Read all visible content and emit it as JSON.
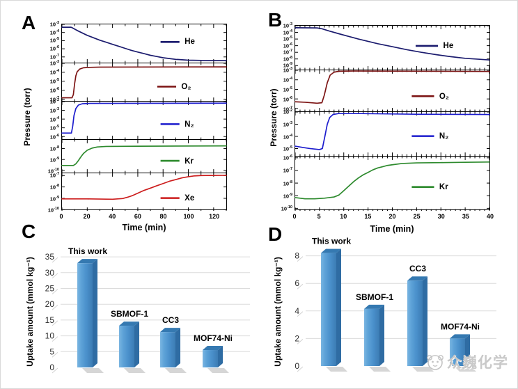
{
  "watermark": {
    "text": "众巍化学",
    "logo_icon": "cartoon-animal-face-icon"
  },
  "chart_data": [
    {
      "panel": "A",
      "type": "line",
      "xlabel": "Time (min)",
      "ylabel": "Pressure (torr)",
      "x_range": [
        0,
        130
      ],
      "x_ticks": [
        0,
        20,
        40,
        60,
        80,
        100,
        120
      ],
      "y_scale": "log10 (torr)",
      "subplots": [
        {
          "label": "He",
          "color": "#1b1b6e",
          "y_log_range": [
            -3,
            -7.7
          ],
          "y_tick_exponents": [
            -3,
            -4,
            -5,
            -6,
            -7
          ],
          "points": [
            [
              0,
              -3.35
            ],
            [
              7,
              -3.35
            ],
            [
              8,
              -3.4
            ],
            [
              12,
              -3.75
            ],
            [
              16,
              -4.05
            ],
            [
              20,
              -4.35
            ],
            [
              25,
              -4.65
            ],
            [
              30,
              -4.95
            ],
            [
              35,
              -5.2
            ],
            [
              40,
              -5.45
            ],
            [
              45,
              -5.7
            ],
            [
              50,
              -5.95
            ],
            [
              55,
              -6.2
            ],
            [
              60,
              -6.4
            ],
            [
              65,
              -6.6
            ],
            [
              70,
              -6.8
            ],
            [
              75,
              -6.95
            ],
            [
              80,
              -7.1
            ],
            [
              85,
              -7.2
            ],
            [
              90,
              -7.3
            ],
            [
              95,
              -7.35
            ],
            [
              100,
              -7.4
            ],
            [
              110,
              -7.43
            ],
            [
              120,
              -7.45
            ],
            [
              130,
              -7.45
            ]
          ]
        },
        {
          "label": "O₂",
          "color": "#7c1313",
          "y_log_range": [
            -3,
            -7.2
          ],
          "y_tick_exponents": [
            -3,
            -4,
            -5,
            -6,
            -7
          ],
          "points": [
            [
              0,
              -6.85
            ],
            [
              8,
              -6.85
            ],
            [
              9,
              -6.5
            ],
            [
              10,
              -5.3
            ],
            [
              11,
              -4.4
            ],
            [
              12,
              -3.95
            ],
            [
              14,
              -3.65
            ],
            [
              17,
              -3.5
            ],
            [
              22,
              -3.45
            ],
            [
              30,
              -3.42
            ],
            [
              130,
              -3.4
            ]
          ]
        },
        {
          "label": "N₂",
          "color": "#1c1ccd",
          "y_log_range": [
            -2,
            -6.3
          ],
          "y_tick_exponents": [
            -2,
            -3,
            -4,
            -5,
            -6
          ],
          "points": [
            [
              0,
              -5.6
            ],
            [
              7.5,
              -5.6
            ],
            [
              8.5,
              -4.8
            ],
            [
              9.5,
              -3.6
            ],
            [
              11,
              -2.8
            ],
            [
              13,
              -2.4
            ],
            [
              16,
              -2.25
            ],
            [
              22,
              -2.2
            ],
            [
              130,
              -2.18
            ]
          ]
        },
        {
          "label": "Kr",
          "color": "#2d8a2d",
          "y_log_range": [
            -7.2,
            -10.2
          ],
          "y_tick_exponents": [
            -8,
            -9,
            -10
          ],
          "points": [
            [
              0,
              -9.55
            ],
            [
              9,
              -9.55
            ],
            [
              11,
              -9.4
            ],
            [
              13,
              -9.1
            ],
            [
              15,
              -8.75
            ],
            [
              17,
              -8.45
            ],
            [
              20,
              -8.15
            ],
            [
              24,
              -7.95
            ],
            [
              28,
              -7.85
            ],
            [
              35,
              -7.8
            ],
            [
              60,
              -7.78
            ],
            [
              130,
              -7.75
            ]
          ]
        },
        {
          "label": "Xe",
          "color": "#cc1c1c",
          "y_log_range": [
            -6.8,
            -10.1
          ],
          "y_tick_exponents": [
            -7,
            -8,
            -9,
            -10
          ],
          "points": [
            [
              0,
              -9.05
            ],
            [
              20,
              -9.05
            ],
            [
              40,
              -9.08
            ],
            [
              48,
              -9.02
            ],
            [
              52,
              -8.9
            ],
            [
              56,
              -8.75
            ],
            [
              60,
              -8.55
            ],
            [
              65,
              -8.3
            ],
            [
              70,
              -8.1
            ],
            [
              75,
              -7.9
            ],
            [
              80,
              -7.7
            ],
            [
              85,
              -7.5
            ],
            [
              90,
              -7.35
            ],
            [
              95,
              -7.2
            ],
            [
              100,
              -7.1
            ],
            [
              105,
              -7.03
            ],
            [
              110,
              -7.0
            ],
            [
              130,
              -6.98
            ]
          ]
        }
      ]
    },
    {
      "panel": "B",
      "type": "line",
      "xlabel": "Time (min)",
      "ylabel": "Pressure (torr)",
      "x_range": [
        0,
        40
      ],
      "x_ticks": [
        0,
        5,
        10,
        15,
        20,
        25,
        30,
        35,
        40
      ],
      "y_scale": "log10 (torr)",
      "subplots": [
        {
          "label": "He",
          "color": "#1b1b6e",
          "y_log_range": [
            -3,
            -9.6
          ],
          "y_tick_exponents": [
            -3,
            -4,
            -5,
            -6,
            -7,
            -8,
            -9
          ],
          "points": [
            [
              0,
              -3.3
            ],
            [
              4.5,
              -3.32
            ],
            [
              5.5,
              -3.45
            ],
            [
              7,
              -3.8
            ],
            [
              9,
              -4.2
            ],
            [
              11,
              -4.6
            ],
            [
              13,
              -5.0
            ],
            [
              15,
              -5.35
            ],
            [
              17,
              -5.7
            ],
            [
              20,
              -6.15
            ],
            [
              23,
              -6.6
            ],
            [
              26,
              -7.0
            ],
            [
              29,
              -7.35
            ],
            [
              32,
              -7.65
            ],
            [
              35,
              -7.9
            ],
            [
              38,
              -8.05
            ],
            [
              40,
              -8.15
            ]
          ]
        },
        {
          "label": "O₂",
          "color": "#7c1313",
          "y_log_range": [
            -3,
            -7.3
          ],
          "y_tick_exponents": [
            -3,
            -4,
            -5,
            -6,
            -7
          ],
          "points": [
            [
              0,
              -6.3
            ],
            [
              2,
              -6.35
            ],
            [
              4.5,
              -6.45
            ],
            [
              5.5,
              -6.4
            ],
            [
              6,
              -5.6
            ],
            [
              6.6,
              -4.3
            ],
            [
              7.2,
              -3.5
            ],
            [
              8,
              -3.2
            ],
            [
              9,
              -3.1
            ],
            [
              12,
              -3.08
            ],
            [
              40,
              -3.12
            ]
          ]
        },
        {
          "label": "N₂",
          "color": "#1c1ccd",
          "y_log_range": [
            -2,
            -5.6
          ],
          "y_tick_exponents": [
            -2,
            -3,
            -4,
            -5
          ],
          "points": [
            [
              0,
              -4.8
            ],
            [
              1.5,
              -4.9
            ],
            [
              3,
              -5.0
            ],
            [
              5,
              -5.08
            ],
            [
              5.6,
              -5.0
            ],
            [
              6.1,
              -4.0
            ],
            [
              6.6,
              -3.0
            ],
            [
              7.1,
              -2.45
            ],
            [
              7.8,
              -2.2
            ],
            [
              9,
              -2.12
            ],
            [
              12,
              -2.12
            ],
            [
              25,
              -2.18
            ],
            [
              40,
              -2.2
            ]
          ]
        },
        {
          "label": "Kr",
          "color": "#2d8a2d",
          "y_log_range": [
            -5.9,
            -10.2
          ],
          "y_tick_exponents": [
            -6,
            -7,
            -8,
            -9,
            -10
          ],
          "points": [
            [
              0,
              -9.15
            ],
            [
              2,
              -9.25
            ],
            [
              4,
              -9.25
            ],
            [
              6,
              -9.2
            ],
            [
              8,
              -9.1
            ],
            [
              9,
              -8.95
            ],
            [
              10,
              -8.6
            ],
            [
              11,
              -8.25
            ],
            [
              12,
              -7.9
            ],
            [
              13,
              -7.6
            ],
            [
              14,
              -7.35
            ],
            [
              15,
              -7.15
            ],
            [
              16,
              -6.95
            ],
            [
              17,
              -6.8
            ],
            [
              18,
              -6.7
            ],
            [
              19,
              -6.6
            ],
            [
              20,
              -6.55
            ],
            [
              22,
              -6.45
            ],
            [
              25,
              -6.4
            ],
            [
              30,
              -6.38
            ],
            [
              35,
              -6.35
            ],
            [
              40,
              -6.33
            ]
          ]
        }
      ]
    },
    {
      "panel": "C",
      "type": "bar",
      "ylabel": "Uptake amount (mmol kg⁻¹)",
      "categories": [
        "This work",
        "SBMOF-1",
        "CC3",
        "MOF74-Ni"
      ],
      "values": [
        33,
        13.2,
        11.2,
        5.5
      ],
      "y_ticks": [
        0,
        5,
        10,
        15,
        20,
        25,
        30,
        35
      ],
      "ylim": [
        0,
        36
      ],
      "bar_color": "#4a90cb",
      "grid": true,
      "legend_position": "none"
    },
    {
      "panel": "D",
      "type": "bar",
      "ylabel": "Uptake amount (mmol kg⁻¹)",
      "categories": [
        "This work",
        "SBMOF-1",
        "CC3",
        "MOF74-Ni"
      ],
      "values": [
        8.2,
        4.15,
        6.2,
        2.0
      ],
      "y_ticks": [
        0,
        2,
        4,
        6,
        8
      ],
      "ylim": [
        0,
        8.6
      ],
      "bar_color": "#4a90cb",
      "grid": true,
      "legend_position": "none"
    }
  ]
}
